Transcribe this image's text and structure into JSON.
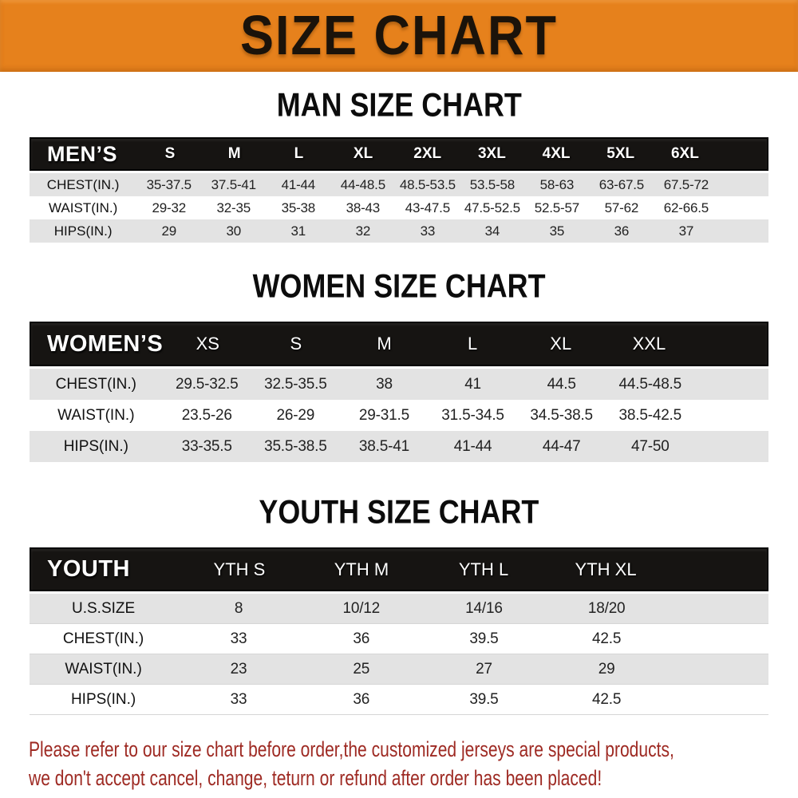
{
  "title": {
    "text": "SIZE CHART"
  },
  "colors": {
    "banner_bg": "#e6811c",
    "table_header_bg": "#161412",
    "row_stripe_gray": "#e3e3e3",
    "footer_red": "#9e2a23"
  },
  "sections": [
    {
      "id": "men",
      "heading": "MAN SIZE CHART",
      "header_label": "MEN’S",
      "columns": [
        "S",
        "M",
        "L",
        "XL",
        "2XL",
        "3XL",
        "4XL",
        "5XL",
        "6XL"
      ],
      "rows": [
        {
          "label": "CHEST(IN.)",
          "values": [
            "35-37.5",
            "37.5-41",
            "41-44",
            "44-48.5",
            "48.5-53.5",
            "53.5-58",
            "58-63",
            "63-67.5",
            "67.5-72"
          ]
        },
        {
          "label": "WAIST(IN.)",
          "values": [
            "29-32",
            "32-35",
            "35-38",
            "38-43",
            "43-47.5",
            "47.5-52.5",
            "52.5-57",
            "57-62",
            "62-66.5"
          ]
        },
        {
          "label": "HIPS(IN.)",
          "values": [
            "29",
            "30",
            "31",
            "32",
            "33",
            "34",
            "35",
            "36",
            "37"
          ]
        }
      ]
    },
    {
      "id": "women",
      "heading": "WOMEN SIZE CHART",
      "header_label": "WOMEN’S",
      "columns": [
        "XS",
        "S",
        "M",
        "L",
        "XL",
        "XXL"
      ],
      "rows": [
        {
          "label": "CHEST(IN.)",
          "values": [
            "29.5-32.5",
            "32.5-35.5",
            "38",
            "41",
            "44.5",
            "44.5-48.5"
          ]
        },
        {
          "label": "WAIST(IN.)",
          "values": [
            "23.5-26",
            "26-29",
            "29-31.5",
            "31.5-34.5",
            "34.5-38.5",
            "38.5-42.5"
          ]
        },
        {
          "label": "HIPS(IN.)",
          "values": [
            "33-35.5",
            "35.5-38.5",
            "38.5-41",
            "41-44",
            "44-47",
            "47-50"
          ]
        }
      ]
    },
    {
      "id": "youth",
      "heading": "YOUTH SIZE CHART",
      "header_label": "YOUTH",
      "columns": [
        "YTH S",
        "YTH M",
        "YTH L",
        "YTH XL"
      ],
      "rows": [
        {
          "label": "U.S.SIZE",
          "values": [
            "8",
            "10/12",
            "14/16",
            "18/20"
          ]
        },
        {
          "label": "CHEST(IN.)",
          "values": [
            "33",
            "36",
            "39.5",
            "42.5"
          ]
        },
        {
          "label": "WAIST(IN.)",
          "values": [
            "23",
            "25",
            "27",
            "29"
          ]
        },
        {
          "label": "HIPS(IN.)",
          "values": [
            "33",
            "36",
            "39.5",
            "42.5"
          ]
        }
      ]
    }
  ],
  "footer": {
    "lines": [
      "Please refer to our size chart before order,the customized jerseys are special products,",
      "we don't accept cancel, change, teturn or refund after order has been placed!"
    ]
  }
}
